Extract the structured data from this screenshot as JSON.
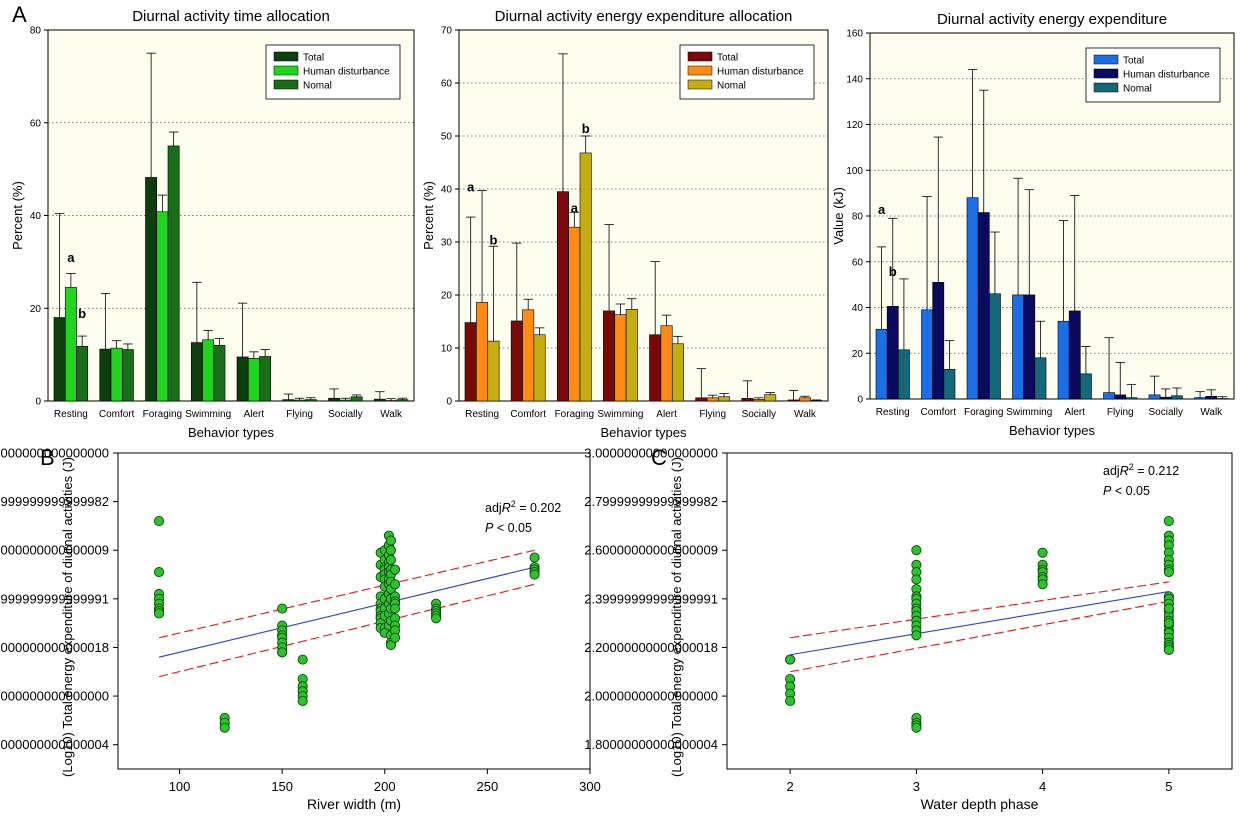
{
  "panel_labels": [
    "A",
    "B",
    "C"
  ],
  "colors": {
    "plot_bg": "#fdfdf0",
    "regression_line": "#2b3fd6",
    "confidence_band": "#e8141a",
    "scatter_fill": "#2fc22f",
    "scatter_stroke": "#0a4a0a",
    "grid": "#555555"
  },
  "chart_data": [
    {
      "type": "bar",
      "title": "Diurnal activity time allocation",
      "xlabel": "Behavior types",
      "ylabel": "Percent (%)",
      "ylim": [
        0,
        80
      ],
      "yticks": [
        0,
        20,
        40,
        60,
        80
      ],
      "grid": "horizontal dotted",
      "legend_position": "top-right",
      "categories": [
        "Resting",
        "Comfort",
        "Foraging",
        "Swimming",
        "Alert",
        "Flying",
        "Socially",
        "Walk"
      ],
      "series": [
        {
          "name": "Total",
          "color": "#0e3d0e",
          "values": [
            18,
            11.2,
            48.2,
            12.6,
            9.5,
            0.3,
            0.6,
            0.4
          ],
          "errors": [
            22.4,
            12,
            26.8,
            13,
            11.6,
            1.2,
            2,
            1.6
          ]
        },
        {
          "name": "Human disturbance",
          "color": "#20d420",
          "values": [
            24.5,
            11.4,
            40.8,
            13.2,
            9.2,
            0.2,
            0.2,
            0.1
          ],
          "errors": [
            3,
            1.6,
            3.6,
            2,
            1.4,
            0.4,
            0.4,
            0.4
          ]
        },
        {
          "name": "Nomal",
          "color": "#1a6e1a",
          "values": [
            11.8,
            11.1,
            55,
            12,
            9.6,
            0.3,
            0.9,
            0.3
          ],
          "errors": [
            2.2,
            1.2,
            3,
            1.5,
            1.5,
            0.4,
            0.4,
            0.3
          ]
        }
      ],
      "annotations": [
        {
          "text": "a",
          "category": "Resting",
          "series": 1,
          "y": 31
        },
        {
          "text": "b",
          "category": "Resting",
          "series": 2,
          "y": 19
        }
      ]
    },
    {
      "type": "bar",
      "title": "Diurnal activity energy expenditure allocation",
      "xlabel": "Behavior types",
      "ylabel": "Percent (%)",
      "ylim": [
        0,
        70
      ],
      "yticks": [
        0,
        10,
        20,
        30,
        40,
        50,
        60,
        70
      ],
      "grid": "horizontal dotted",
      "legend_position": "top-right",
      "categories": [
        "Resting",
        "Comfort",
        "Foraging",
        "Swimming",
        "Alert",
        "Flying",
        "Socially",
        "Walk"
      ],
      "series": [
        {
          "name": "Total",
          "color": "#7a0a0a",
          "values": [
            14.8,
            15.1,
            39.5,
            17,
            12.5,
            0.6,
            0.5,
            0.2
          ],
          "errors": [
            19.9,
            14.7,
            26,
            16.3,
            13.8,
            5.5,
            3.3,
            1.8
          ]
        },
        {
          "name": "Human disturbance",
          "color": "#ff8a14",
          "values": [
            18.6,
            17.2,
            32.8,
            16.3,
            14.2,
            0.6,
            0.3,
            0.6
          ],
          "errors": [
            21.1,
            2,
            2.8,
            2,
            2,
            0.5,
            0.3,
            0.3
          ]
        },
        {
          "name": "Nomal",
          "color": "#c4ad12",
          "values": [
            11.3,
            12.5,
            46.8,
            17.3,
            10.8,
            0.8,
            1.2,
            0.1
          ],
          "errors": [
            17.9,
            1.3,
            3.2,
            2,
            1.4,
            0.6,
            0.4,
            0.1
          ]
        }
      ],
      "annotations": [
        {
          "text": "a",
          "category": "Resting",
          "series": 0,
          "y": 40.5
        },
        {
          "text": "b",
          "category": "Resting",
          "series": 2,
          "y": 30.5
        },
        {
          "text": "a",
          "category": "Foraging",
          "series": 1,
          "y": 36.5
        },
        {
          "text": "b",
          "category": "Foraging",
          "series": 2,
          "y": 51.5
        }
      ]
    },
    {
      "type": "bar",
      "title": "Diurnal activity energy expenditure",
      "xlabel": "Behavior types",
      "ylabel": "Value (kJ)",
      "ylim": [
        0,
        160
      ],
      "yticks": [
        0,
        20,
        40,
        60,
        80,
        100,
        120,
        140,
        160
      ],
      "grid": "horizontal dotted",
      "legend_position": "top-right",
      "categories": [
        "Resting",
        "Comfort",
        "Foraging",
        "Swimming",
        "Alert",
        "Flying",
        "Socially",
        "Walk"
      ],
      "series": [
        {
          "name": "Total",
          "color": "#1a6ee6",
          "values": [
            30.5,
            39,
            88,
            45.5,
            34,
            2.8,
            1.8,
            0.6
          ],
          "errors": [
            36,
            49.5,
            56,
            51,
            44,
            24,
            8.2,
            2.6
          ]
        },
        {
          "name": "Human disturbance",
          "color": "#0a0a5e",
          "values": [
            40.5,
            51,
            81.5,
            45.5,
            38.5,
            1.8,
            0.8,
            1.2
          ],
          "errors": [
            38.5,
            63.5,
            53.5,
            46,
            50.5,
            14.2,
            3.6,
            2.8
          ]
        },
        {
          "name": "Nomal",
          "color": "#15687a",
          "values": [
            21.5,
            13,
            46,
            18,
            11,
            0.6,
            1.4,
            0.2
          ],
          "errors": [
            31,
            12.5,
            27,
            16,
            12,
            5.8,
            3.4,
            0.8
          ]
        }
      ],
      "annotations": [
        {
          "text": "a",
          "category": "Resting",
          "series": 0,
          "y": 83
        },
        {
          "text": "b",
          "category": "Resting",
          "series": 1,
          "y": 56
        }
      ]
    },
    {
      "type": "scatter",
      "title": "",
      "xlabel": "River width  (m)",
      "ylabel": "(Log10) Total energy expenditure of diurnal activities (J)",
      "xlim": [
        70,
        300
      ],
      "ylim": [
        1.7,
        3.0
      ],
      "xticks": [
        100,
        150,
        200,
        250,
        300
      ],
      "yticks": [
        1.8,
        2.0,
        2.2,
        2.4,
        2.6,
        2.8,
        3.0
      ],
      "stats": {
        "adj_r2": "adjR² = 0.202",
        "p": "P < 0.05"
      },
      "regression": {
        "x": [
          90,
          273
        ],
        "y": [
          2.16,
          2.53
        ]
      },
      "ci_upper": {
        "x": [
          90,
          273
        ],
        "y": [
          2.24,
          2.6
        ]
      },
      "ci_lower": {
        "x": [
          90,
          273
        ],
        "y": [
          2.08,
          2.46
        ]
      },
      "points": {
        "x": [
          90,
          90,
          90,
          90,
          90,
          90,
          90,
          90,
          122,
          122,
          122,
          150,
          150,
          150,
          150,
          150,
          150,
          150,
          150,
          150,
          160,
          160,
          160,
          160,
          160,
          160,
          198,
          198,
          198,
          198,
          198,
          198,
          198,
          198,
          198,
          198,
          198,
          200,
          200,
          200,
          200,
          200,
          200,
          200,
          200,
          200,
          200,
          200,
          200,
          202,
          202,
          202,
          202,
          202,
          202,
          202,
          202,
          202,
          202,
          202,
          202,
          203,
          203,
          203,
          203,
          203,
          203,
          203,
          203,
          203,
          203,
          203,
          203,
          203,
          205,
          205,
          205,
          205,
          205,
          205,
          205,
          205,
          205,
          205,
          225,
          225,
          225,
          225,
          225,
          225,
          273,
          273,
          273,
          273,
          273
        ],
        "y": [
          2.72,
          2.51,
          2.42,
          2.4,
          2.38,
          2.36,
          2.35,
          2.34,
          1.91,
          1.89,
          1.87,
          2.36,
          2.29,
          2.27,
          2.25,
          2.24,
          2.22,
          2.2,
          2.18,
          2.18,
          2.15,
          2.07,
          2.04,
          2.02,
          2.0,
          1.98,
          2.59,
          2.54,
          2.49,
          2.41,
          2.38,
          2.36,
          2.35,
          2.33,
          2.32,
          2.3,
          2.28,
          2.6,
          2.56,
          2.53,
          2.52,
          2.5,
          2.48,
          2.45,
          2.4,
          2.36,
          2.33,
          2.28,
          2.26,
          2.66,
          2.62,
          2.58,
          2.55,
          2.53,
          2.51,
          2.48,
          2.46,
          2.42,
          2.38,
          2.34,
          2.29,
          2.64,
          2.6,
          2.56,
          2.52,
          2.5,
          2.47,
          2.44,
          2.4,
          2.36,
          2.31,
          2.25,
          2.22,
          2.21,
          2.52,
          2.46,
          2.41,
          2.39,
          2.38,
          2.36,
          2.32,
          2.29,
          2.27,
          2.24,
          2.38,
          2.36,
          2.35,
          2.34,
          2.33,
          2.32,
          2.57,
          2.53,
          2.52,
          2.51,
          2.5
        ]
      }
    },
    {
      "type": "scatter",
      "title": "",
      "xlabel": "Water depth phase",
      "ylabel": "(Log10) Total energy expenditure of diurnal activities (J)",
      "xlim": [
        1.5,
        5.5
      ],
      "ylim": [
        1.7,
        3.0
      ],
      "xticks": [
        2,
        3,
        4,
        5
      ],
      "yticks": [
        1.8,
        2.0,
        2.2,
        2.4,
        2.6,
        2.8,
        3.0
      ],
      "stats": {
        "adj_r2": "adjR² = 0.212",
        "p": "P < 0.05"
      },
      "regression": {
        "x": [
          2,
          5
        ],
        "y": [
          2.17,
          2.43
        ]
      },
      "ci_upper": {
        "x": [
          2,
          5
        ],
        "y": [
          2.24,
          2.47
        ]
      },
      "ci_lower": {
        "x": [
          2,
          5
        ],
        "y": [
          2.1,
          2.39
        ]
      },
      "points": {
        "x": [
          2,
          2,
          2,
          2,
          2,
          2,
          3,
          3,
          3,
          3,
          3,
          3,
          3,
          3,
          3,
          3,
          3,
          3,
          3,
          3,
          3,
          3,
          3,
          3,
          3,
          4,
          4,
          4,
          4,
          4,
          4,
          4,
          5,
          5,
          5,
          5,
          5,
          5,
          5,
          5,
          5,
          5,
          5,
          5,
          5,
          5,
          5,
          5,
          5,
          5,
          5,
          5,
          5,
          5,
          5,
          5,
          5,
          5
        ],
        "y": [
          2.15,
          2.15,
          2.07,
          2.04,
          2.01,
          1.98,
          2.6,
          2.54,
          2.51,
          2.48,
          2.44,
          2.41,
          2.4,
          2.38,
          2.36,
          2.35,
          2.33,
          2.31,
          2.29,
          2.27,
          2.25,
          1.91,
          1.89,
          1.88,
          1.87,
          2.59,
          2.54,
          2.52,
          2.51,
          2.49,
          2.48,
          2.46,
          2.72,
          2.66,
          2.64,
          2.62,
          2.59,
          2.56,
          2.54,
          2.52,
          2.51,
          2.41,
          2.4,
          2.38,
          2.36,
          2.35,
          2.33,
          2.31,
          2.29,
          2.27,
          2.26,
          2.24,
          2.22,
          2.21,
          2.2,
          2.19,
          2.36,
          2.3
        ]
      }
    }
  ]
}
